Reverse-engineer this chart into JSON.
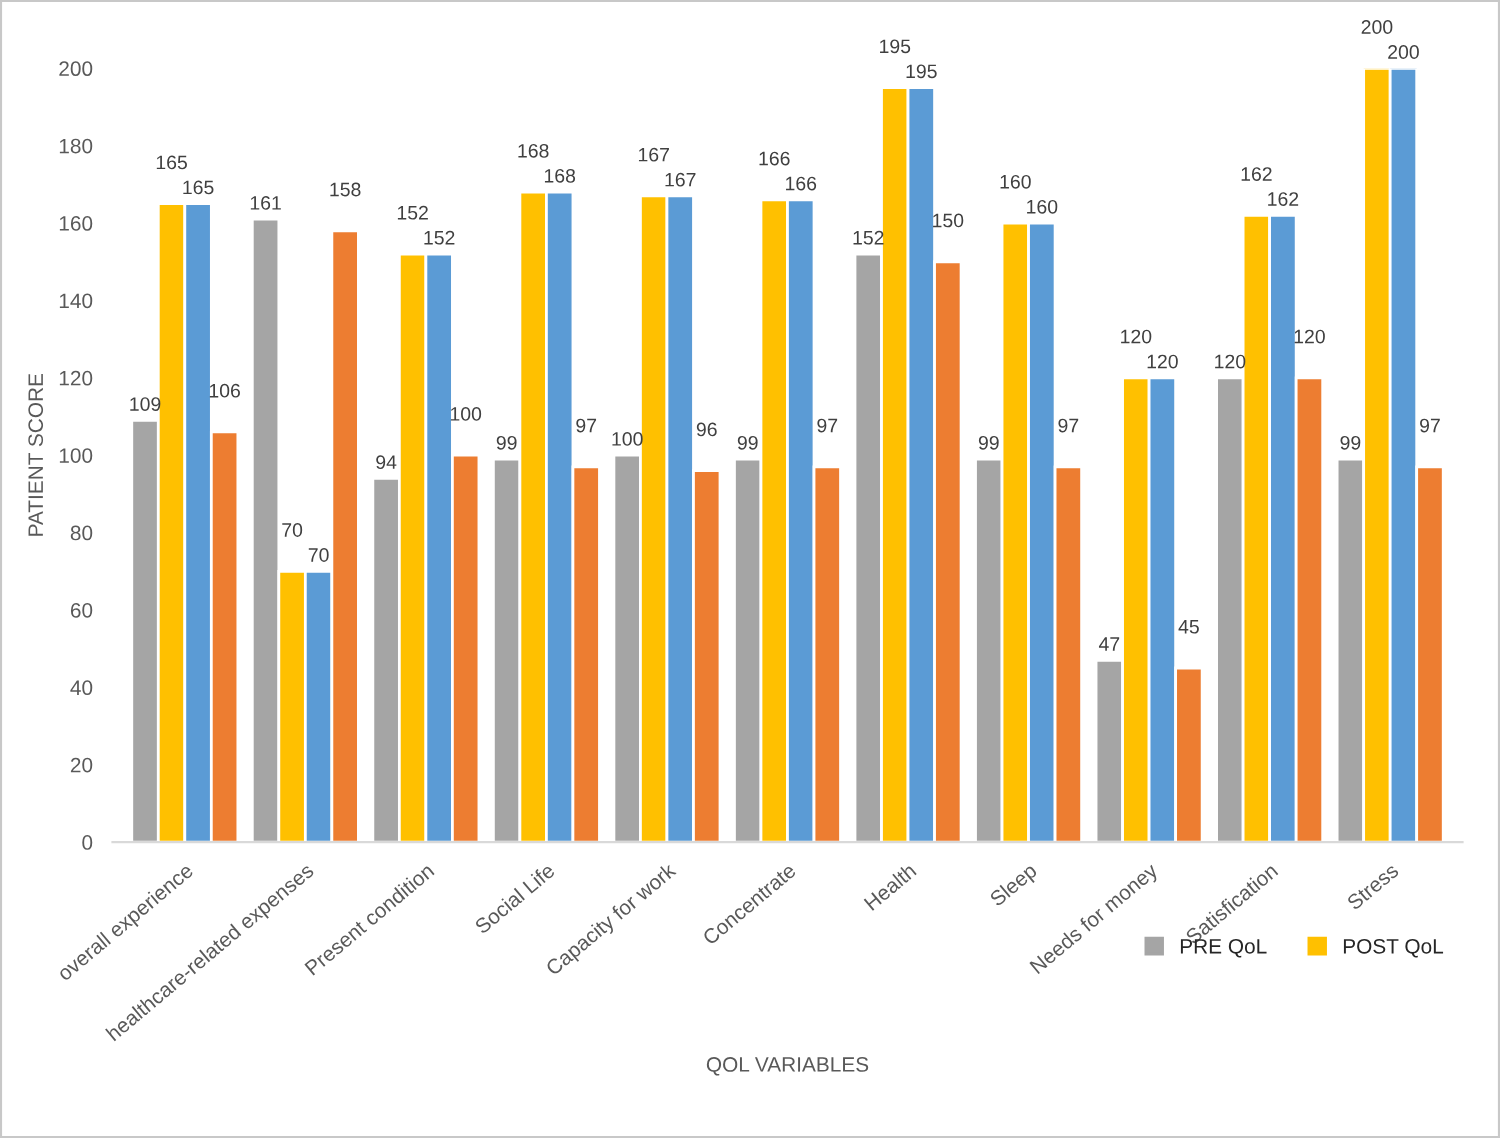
{
  "chart_data": {
    "type": "bar",
    "xlabel": "QOL VARIABLES",
    "ylabel": "PATIENT SCORE",
    "categories": [
      "overall experience",
      "healthcare-related expenses",
      "Present condition",
      "Social Life",
      "Capacity for work",
      "Concentrate",
      "Health",
      "Sleep",
      "Needs for money",
      "Satisfication",
      "Stress"
    ],
    "series": [
      {
        "name": "PRE QoL",
        "color": "#a5a5a5",
        "values": [
          109,
          161,
          94,
          99,
          100,
          99,
          152,
          99,
          47,
          120,
          99
        ]
      },
      {
        "name": "POST QoL",
        "color": "#ffc000",
        "values": [
          165,
          70,
          152,
          168,
          167,
          166,
          195,
          160,
          120,
          162,
          200
        ]
      },
      {
        "color": "#5b9bd5",
        "values": [
          165,
          70,
          152,
          168,
          167,
          166,
          195,
          160,
          120,
          162,
          200
        ]
      },
      {
        "color": "#ed7d31",
        "values": [
          106,
          158,
          100,
          97,
          96,
          97,
          150,
          97,
          45,
          120,
          97
        ]
      }
    ],
    "ylim": [
      0,
      200
    ],
    "yticks": [
      0,
      20,
      40,
      60,
      80,
      100,
      120,
      140,
      160,
      180,
      200
    ],
    "grid": false,
    "legend": "bottom right",
    "data_labels": true
  }
}
